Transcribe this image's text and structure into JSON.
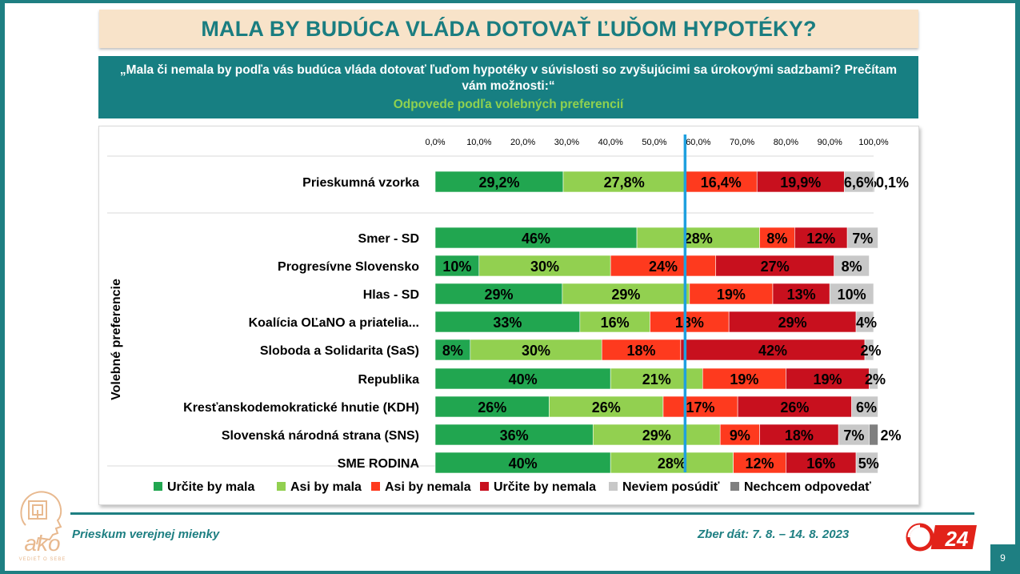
{
  "header": {
    "title": "MALA BY BUDÚCA VLÁDA DOTOVAŤ ĽUĎOM HYPOTÉKY?",
    "question": "„Mala či nemala by podľa vás budúca vláda dotovať ľuďom hypotéky v súvislosti so zvyšujúcimi sa úrokovými sadzbami? Prečítam vám možnosti:“",
    "subtitle": "Odpovede podľa volebných preferencií"
  },
  "footer": {
    "left": "Prieskum verejnej mienky",
    "right": "Zber dát: 7. 8. – 14. 8. 2023",
    "page_number": "9",
    "logo_text": "ako",
    "logo_tagline": "VEDIEŤ O SEBE",
    "tv_logo_text": "24"
  },
  "chart_data": {
    "type": "bar",
    "orientation": "horizontal",
    "stacked": true,
    "x_tick_labels": [
      "0,0%",
      "10,0%",
      "20,0%",
      "30,0%",
      "40,0%",
      "50,0%",
      "60,0%",
      "70,0%",
      "80,0%",
      "90,0%",
      "100,0%"
    ],
    "xlim": [
      0,
      100
    ],
    "ylabel": "Volebné preferencie",
    "reference_line": 57.0,
    "categories": [
      "Prieskumná vzorka",
      "Smer - SD",
      "Progresívne Slovensko",
      "Hlas - SD",
      "Koalícia OĽaNO a priatelia...",
      "Sloboda a Solidarita (SaS)",
      "Republika",
      "Kresťanskodemokratické hnutie (KDH)",
      "Slovenská národná strana (SNS)",
      "SME RODINA"
    ],
    "series": [
      {
        "name": "Určite by mala",
        "color": "#21a650",
        "values": [
          29.2,
          46,
          10,
          29,
          33,
          8,
          40,
          26,
          36,
          40
        ],
        "labels": [
          "29,2%",
          "46%",
          "10%",
          "29%",
          "33%",
          "8%",
          "40%",
          "26%",
          "36%",
          "40%"
        ]
      },
      {
        "name": "Asi by mala",
        "color": "#92d050",
        "values": [
          27.8,
          28,
          30,
          29,
          16,
          30,
          21,
          26,
          29,
          28
        ],
        "labels": [
          "27,8%",
          "28%",
          "30%",
          "29%",
          "16%",
          "30%",
          "21%",
          "26%",
          "29%",
          "28%"
        ]
      },
      {
        "name": "Asi by nemala",
        "color": "#fe3a1e",
        "values": [
          16.4,
          8,
          24,
          19,
          18,
          18,
          19,
          17,
          9,
          12
        ],
        "labels": [
          "16,4%",
          "8%",
          "24%",
          "19%",
          "18%",
          "18%",
          "19%",
          "17%",
          "9%",
          "12%"
        ]
      },
      {
        "name": "Určite by nemala",
        "color": "#c8101e",
        "values": [
          19.9,
          12,
          27,
          13,
          29,
          42,
          19,
          26,
          18,
          16
        ],
        "labels": [
          "19,9%",
          "12%",
          "27%",
          "13%",
          "29%",
          "42%",
          "19%",
          "26%",
          "18%",
          "16%"
        ]
      },
      {
        "name": "Neviem posúdiť",
        "color": "#c8c8c8",
        "values": [
          6.6,
          7,
          8,
          10,
          4,
          2,
          2,
          6,
          7,
          5
        ],
        "labels": [
          "6,6%",
          "7%",
          "8%",
          "10%",
          "4%",
          "2%",
          "2%",
          "6%",
          "7%",
          "5%"
        ]
      },
      {
        "name": "Nechcem odpovedať",
        "color": "#7f7f7f",
        "values": [
          0.1,
          0,
          0,
          0,
          0,
          0,
          0,
          0,
          2,
          0
        ],
        "labels": [
          "0,1%",
          "",
          "",
          "",
          "",
          "",
          "",
          "",
          "2%",
          ""
        ]
      }
    ]
  }
}
